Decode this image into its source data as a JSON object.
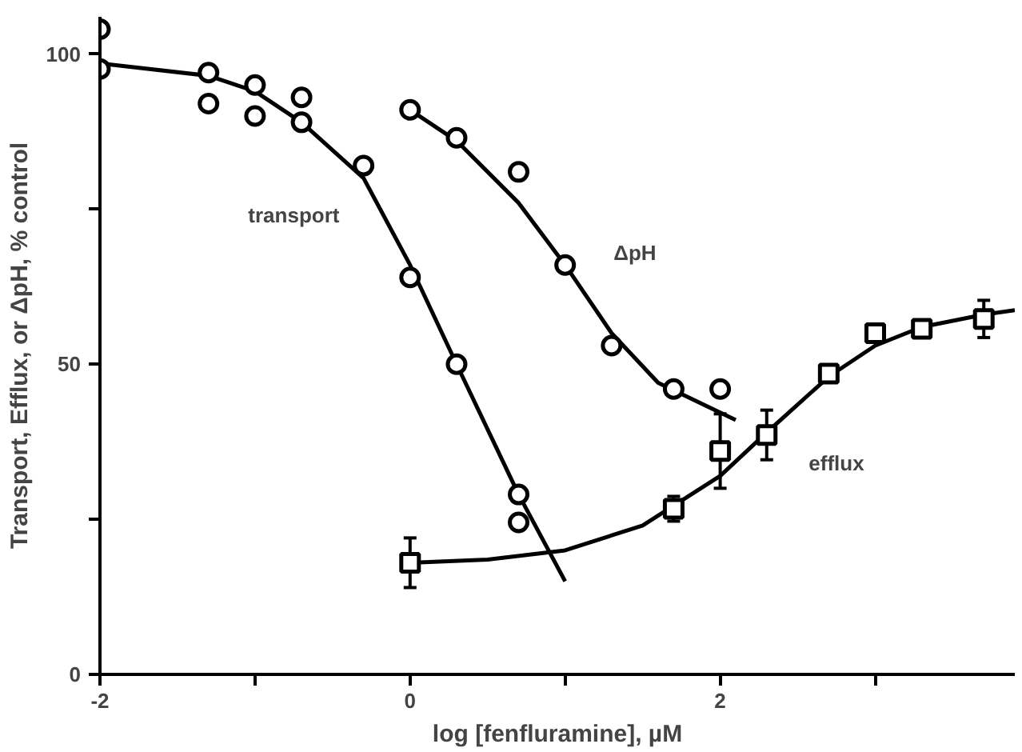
{
  "chart_data": {
    "type": "scatter",
    "xlabel": "log [fenfluramine], µM",
    "ylabel": "Transport, Efflux, or ΔpH, % control",
    "xlim": [
      -2,
      3.9
    ],
    "ylim": [
      0,
      106
    ],
    "xticks": [
      -2,
      {
        "value": -1,
        "label": null
      },
      0,
      {
        "value": 1,
        "label": null
      },
      2,
      {
        "value": 3,
        "label": null
      }
    ],
    "yticks": [
      0,
      {
        "value": 25,
        "label": null
      },
      50,
      {
        "value": 75,
        "label": null
      },
      100
    ],
    "grid": false,
    "series": [
      {
        "type": "line",
        "color": "#000000",
        "marker": "none",
        "x": [
          -2,
          -1.3,
          -1,
          -0.7,
          -0.3,
          0,
          0.3,
          0.7,
          1
        ],
        "values": [
          98.5,
          96.5,
          94,
          89,
          80,
          66,
          50,
          29,
          15
        ]
      },
      {
        "type": "line",
        "color": "#000000",
        "marker": "none",
        "x": [
          0,
          0.3,
          0.7,
          1,
          1.3,
          1.6,
          2.1
        ],
        "values": [
          91,
          86,
          76,
          66,
          55,
          47,
          41
        ]
      },
      {
        "type": "line",
        "color": "#000000",
        "marker": "none",
        "x": [
          0,
          0.5,
          1,
          1.5,
          2,
          2.3,
          2.7,
          3,
          3.3,
          3.7,
          3.9
        ],
        "values": [
          18,
          18.5,
          20,
          24,
          32,
          39,
          48,
          53,
          56,
          58,
          58.7
        ]
      },
      {
        "color": "#000000",
        "marker": "circle",
        "x": [
          -2,
          -2,
          -1.3,
          -1.3,
          -1,
          -1,
          -0.7,
          -0.7,
          -0.3,
          0,
          0.3,
          0.7,
          0.7
        ],
        "values": [
          104,
          97.6,
          97,
          92,
          95,
          90,
          93,
          89,
          82,
          64,
          50,
          29,
          24.5
        ]
      },
      {
        "color": "#000000",
        "marker": "circle",
        "x": [
          0,
          0.3,
          0.7,
          1,
          1.3,
          1.7,
          2
        ],
        "values": [
          91,
          86.5,
          81,
          66,
          53,
          46,
          46
        ]
      },
      {
        "color": "#000000",
        "marker": "square",
        "x": [
          0,
          1.7,
          2,
          2.3,
          2.7,
          3,
          3.3,
          3.7
        ],
        "values": [
          18,
          26.7,
          36,
          38.6,
          48.5,
          55,
          55.7,
          57.3
        ],
        "errors": [
          4,
          2,
          6,
          4,
          null,
          null,
          null,
          3
        ]
      }
    ],
    "annotations": [
      "transport",
      "ΔpH",
      "efflux"
    ]
  }
}
